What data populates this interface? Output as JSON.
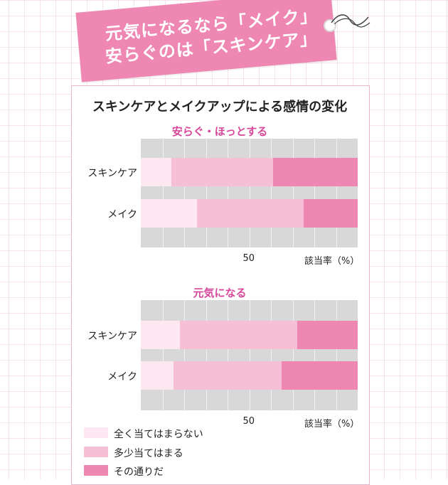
{
  "headline": {
    "line1": "元気になるなら「メイク」",
    "line2": "安らぐのは「スキンケア」"
  },
  "chart_data": {
    "type": "bar",
    "stacked": true,
    "horizontal": true,
    "title": "スキンケアとメイクアップによる感情の変化",
    "xlabel": "該当率（%）",
    "xlim": [
      0,
      100
    ],
    "xticks": [
      50
    ],
    "grid": true,
    "legend_position": "bottom-left",
    "colors": [
      "#fde7f0",
      "#f6bfd5",
      "#ee88b3"
    ],
    "series_names": [
      "全く当てはまらない",
      "多少当てはまる",
      "その通りだ"
    ],
    "charts": [
      {
        "title": "安らぐ・ほっとする",
        "categories": [
          "スキンケア",
          "メイク"
        ],
        "series": [
          {
            "name": "全く当てはまらない",
            "values": [
              14,
              26
            ]
          },
          {
            "name": "多少当てはまる",
            "values": [
              47,
              49
            ]
          },
          {
            "name": "その通りだ",
            "values": [
              39,
              25
            ]
          }
        ]
      },
      {
        "title": "元気になる",
        "categories": [
          "スキンケア",
          "メイク"
        ],
        "series": [
          {
            "name": "全く当てはまらない",
            "values": [
              18,
              15
            ]
          },
          {
            "name": "多少当てはまる",
            "values": [
              54,
              50
            ]
          },
          {
            "name": "その通りだ",
            "values": [
              28,
              35
            ]
          }
        ]
      }
    ]
  }
}
